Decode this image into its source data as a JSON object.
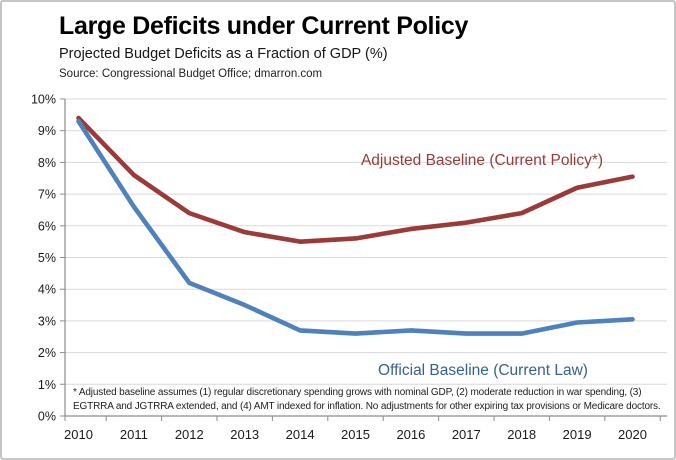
{
  "chart_data": {
    "type": "line",
    "title": "Large Deficits under Current Policy",
    "subtitle": "Projected Budget Deficits as a Fraction of GDP (%)",
    "source": "Source: Congressional Budget Office; dmarron.com",
    "categories": [
      "2010",
      "2011",
      "2012",
      "2013",
      "2014",
      "2015",
      "2016",
      "2017",
      "2018",
      "2019",
      "2020"
    ],
    "series": [
      {
        "name": "Adjusted Baseline (Current Policy*)",
        "color": "#9A3B39",
        "label_color": "#9A3B39",
        "values": [
          9.4,
          7.6,
          6.4,
          5.8,
          5.5,
          5.6,
          5.9,
          6.1,
          6.4,
          7.2,
          7.55
        ]
      },
      {
        "name": "Official Baseline (Current Law)",
        "color": "#4F81BD",
        "label_color": "#376092",
        "values": [
          9.3,
          6.6,
          4.2,
          3.5,
          2.7,
          2.6,
          2.7,
          2.6,
          2.6,
          2.95,
          3.05
        ]
      }
    ],
    "y_axis": {
      "min": 0,
      "max": 10,
      "step": 1,
      "tick_labels": [
        "10%",
        "9%",
        "8%",
        "7%",
        "6%",
        "5%",
        "4%",
        "3%",
        "2%",
        "1%",
        "0%"
      ]
    },
    "grid": true,
    "legend_position": "inline-labels",
    "colors": {
      "gridline": "#D9D9D9",
      "axis": "#8C8C8C"
    },
    "footnote": "* Adjusted baseline assumes (1) regular discretionary spending grows with nominal GDP, (2) moderate reduction in war spending, (3) EGTRRA and JGTRRA extended, and (4) AMT indexed for inflation. No adjustments for other expiring tax provisions or Medicare doctors."
  }
}
